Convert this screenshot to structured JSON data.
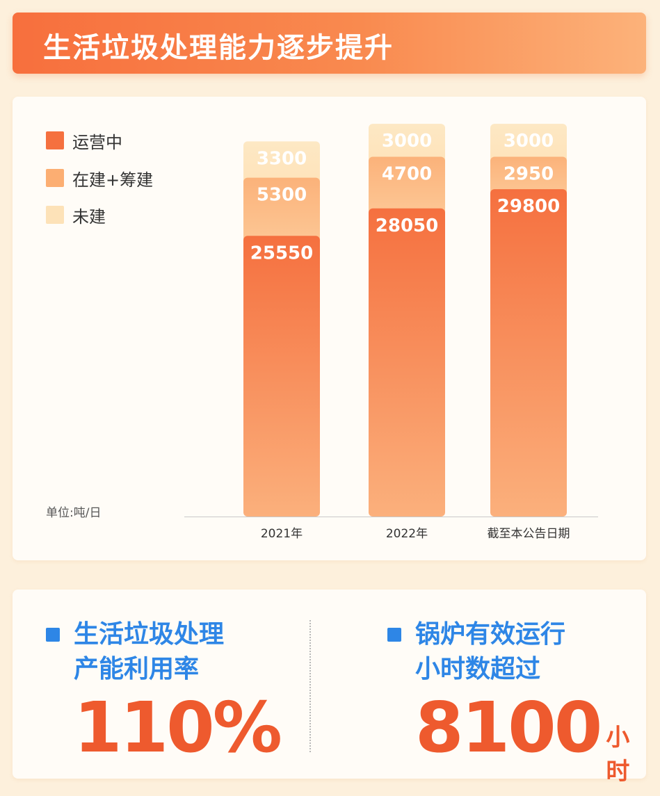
{
  "header": {
    "title": "生活垃圾处理能力逐步提升"
  },
  "chart_data": {
    "type": "bar",
    "stacked": true,
    "categories": [
      "2021年",
      "2022年",
      "截至本公告日期"
    ],
    "series": [
      {
        "name": "运营中",
        "values": [
          25550,
          28050,
          29800
        ],
        "color": "#f5703f"
      },
      {
        "name": "在建+筹建",
        "values": [
          5300,
          4700,
          2950
        ],
        "color": "#fcae72"
      },
      {
        "name": "未建",
        "values": [
          3300,
          3000,
          3000
        ],
        "color": "#fde2b8"
      }
    ],
    "unit_label": "单位:吨/日",
    "legend_position": "top-left",
    "grid": false
  },
  "stats": [
    {
      "label_line1": "生活垃圾处理",
      "label_line2": "产能利用率",
      "value": "110%",
      "unit": ""
    },
    {
      "label_line1": "锅炉有效运行",
      "label_line2": "小时数超过",
      "value": "8100",
      "unit": "小时"
    }
  ]
}
